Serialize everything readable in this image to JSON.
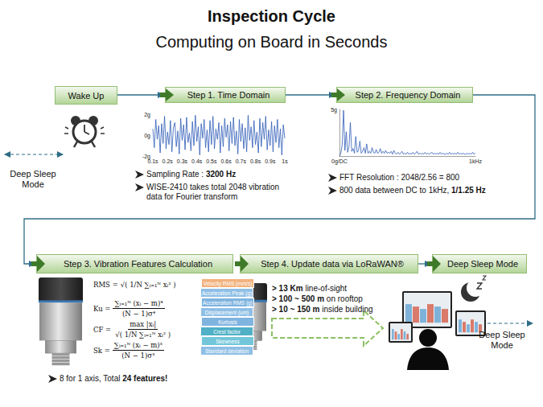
{
  "title": "Inspection Cycle",
  "subtitle": "Computing on Board in Seconds",
  "wake_up": "Wake Up",
  "steps": [
    "Step 1. Time Domain",
    "Step 2. Frequency Domain",
    "Step 3. Vibration Features Calculation",
    "Step 4. Update data via LoRaWAN®",
    "Deep Sleep Mode"
  ],
  "deep_sleep_left": [
    "Deep Sleep",
    "Mode"
  ],
  "deep_sleep_right": [
    "Deep Sleep",
    "Mode"
  ],
  "step1_notes": [
    [
      {
        "text": "Sampling Rate : "
      },
      {
        "bold": "3200 Hz"
      }
    ],
    [
      {
        "text": "WISE-2410 takes total 2048 vibration data for Fourier transform"
      }
    ]
  ],
  "step2_notes": [
    [
      {
        "text": "FFT Resolution : 2048/2.56 = 800"
      }
    ],
    [
      {
        "text": "800 data between DC to 1kHz, "
      },
      {
        "bold": "1/1.25 Hz"
      }
    ]
  ],
  "formulas": [
    {
      "lhs": "RMS =",
      "expression": "√( 1/N ∑ᵢ₌₁ᴺ xᵢ² )"
    },
    {
      "lhs": "Ku =",
      "numerator": "∑ᵢ₌₁ᴺ (xᵢ − m)⁴",
      "denominator": "(N − 1)σ⁴"
    },
    {
      "lhs": "CF =",
      "numerator": "max |xᵢ|",
      "denominator": "√( 1/N ∑ᵢ₌₁ᴺ xᵢ² )"
    },
    {
      "lhs": "Sk =",
      "numerator": "∑ᵢ₌₁ᴺ (xᵢ − m)³",
      "denominator": "(N − 1)σ³"
    }
  ],
  "features": [
    "Velocity RMS (mm/s)",
    "Acceleration Peak (g)",
    "Acceleration RMS (g)",
    "Displacement (um)",
    "Kurtosis",
    "Crest factor",
    "Skewness",
    "Standard deviation"
  ],
  "step3_note": [
    {
      "text": "8 for 1 axis, Total "
    },
    {
      "bold": "24 features!"
    }
  ],
  "lorawan_ranges": [
    [
      {
        "bold": "> 13 Km"
      },
      {
        "text": " line-of-sight"
      }
    ],
    [
      {
        "bold": "> 100 ~ 500 m"
      },
      {
        "text": " on rooftop"
      }
    ],
    [
      {
        "bold": "> 10 ~ 150 m"
      },
      {
        "text": " inside building"
      }
    ]
  ],
  "chart_data": [
    {
      "type": "line",
      "color": "#2e5cb8",
      "grid": false,
      "x": [
        0.1,
        0.11,
        0.12,
        0.13,
        0.14,
        0.15,
        0.16,
        0.17,
        0.18,
        0.19,
        0.2,
        0.21,
        0.22,
        0.23,
        0.24,
        0.25,
        0.26,
        0.27,
        0.28,
        0.29,
        0.3,
        0.31,
        0.32,
        0.33,
        0.34,
        0.35,
        0.36,
        0.37,
        0.38,
        0.39,
        0.4,
        0.41,
        0.42,
        0.43,
        0.44,
        0.45,
        0.46,
        0.47,
        0.48,
        0.49,
        0.5,
        0.51,
        0.52,
        0.53,
        0.54,
        0.55,
        0.56,
        0.57,
        0.58,
        0.59,
        0.6,
        0.61,
        0.62,
        0.63,
        0.64,
        0.65,
        0.66,
        0.67,
        0.68,
        0.69,
        0.7,
        0.71,
        0.72,
        0.73,
        0.74,
        0.75,
        0.76,
        0.77,
        0.78,
        0.79,
        0.8,
        0.81,
        0.82,
        0.83,
        0.84,
        0.85,
        0.86,
        0.87,
        0.88,
        0.89,
        0.9,
        0.91,
        0.92,
        0.93,
        0.94,
        0.95,
        0.96,
        0.97,
        0.98,
        0.99,
        1
      ],
      "values": [
        0.6,
        -1.2,
        1.5,
        -0.4,
        0.9,
        -1.7,
        1.1,
        -0.8,
        1.8,
        -1.3,
        0.3,
        -0.9,
        1.4,
        -1.6,
        0.7,
        1.2,
        -1.1,
        0.4,
        -1.8,
        1.6,
        -0.5,
        1.0,
        -1.4,
        1.7,
        -0.7,
        0.2,
        -1.5,
        1.3,
        -1.0,
        1.9,
        -0.6,
        0.8,
        -1.9,
        1.1,
        -0.3,
        1.5,
        -1.2,
        0.5,
        -1.6,
        1.4,
        -0.9,
        1.8,
        -1.3,
        0.6,
        -0.4,
        1.2,
        -1.7,
        0.9,
        -1.1,
        1.6,
        -0.2,
        1.0,
        -1.5,
        1.3,
        -0.8,
        1.7,
        -1.0,
        0.4,
        -1.8,
        1.5,
        -0.6,
        1.1,
        -1.3,
        0.7,
        -1.6,
        1.9,
        -0.5,
        0.8,
        -1.2,
        1.4,
        -0.9,
        0.3,
        -1.7,
        1.6,
        -1.1,
        1.2,
        -0.4,
        1.8,
        -1.4,
        0.5,
        -1.0,
        1.3,
        -1.6,
        0.9,
        -0.7,
        1.5,
        -1.2,
        0.6,
        -1.9,
        1.0,
        -0.3
      ],
      "xlim": [
        0.1,
        1
      ],
      "xticks": [
        {
          "value": 0.1,
          "label": "0.1s"
        },
        {
          "value": 0.2,
          "label": "0.2s"
        },
        {
          "value": 0.3,
          "label": "0.3s"
        },
        {
          "value": 0.4,
          "label": "0.4s"
        },
        {
          "value": 0.5,
          "label": "0.5s"
        },
        {
          "value": 0.6,
          "label": "0.6s"
        },
        {
          "value": 0.7,
          "label": "0.7s"
        },
        {
          "value": 0.8,
          "label": "0.8s"
        },
        {
          "value": 0.9,
          "label": "0.9s"
        },
        {
          "value": 1,
          "label": "1s"
        }
      ],
      "ylim": [
        -2,
        2
      ],
      "yticks": [
        {
          "value": -2,
          "label": "-2g"
        },
        {
          "value": 0,
          "label": "0g"
        },
        {
          "value": 2,
          "label": "2g"
        }
      ]
    },
    {
      "type": "line",
      "color": "#2e5cb8",
      "grid": false,
      "x": [
        0,
        10,
        20,
        30,
        40,
        50,
        60,
        70,
        80,
        90,
        100,
        110,
        120,
        130,
        140,
        150,
        160,
        170,
        180,
        190,
        200,
        210,
        220,
        230,
        240,
        250,
        260,
        270,
        280,
        290,
        300,
        310,
        320,
        330,
        340,
        350,
        360,
        370,
        380,
        390,
        400,
        410,
        420,
        430,
        440,
        450,
        460,
        470,
        480,
        490,
        500,
        510,
        520,
        530,
        540,
        550,
        560,
        570,
        580,
        590,
        600,
        610,
        620,
        630,
        640,
        650,
        660,
        670,
        680,
        690,
        700,
        710,
        720,
        730,
        740,
        750,
        760,
        770,
        780,
        790,
        800,
        810,
        820,
        830,
        840,
        850,
        860,
        870,
        880,
        890,
        900,
        910,
        920,
        930,
        940,
        950,
        960,
        970,
        980,
        990,
        1000
      ],
      "values": [
        0,
        0.3,
        1.2,
        4.9,
        0.6,
        2.6,
        0.4,
        1.0,
        3.6,
        0.5,
        0.8,
        0.3,
        2.1,
        0.4,
        0.6,
        1.6,
        0.3,
        0.5,
        0.9,
        0.3,
        1.3,
        0.3,
        0.5,
        0.3,
        0.9,
        0.4,
        0.3,
        0.7,
        0.3,
        0.4,
        0.8,
        0.3,
        0.5,
        0.3,
        0.6,
        0.3,
        0.4,
        0.3,
        0.5,
        0.2,
        0.6,
        0.3,
        0.2,
        0.4,
        0.2,
        0.3,
        0.5,
        0.2,
        0.3,
        0.2,
        0.4,
        0.2,
        0.3,
        0.2,
        0.4,
        0.2,
        0.3,
        0.5,
        0.2,
        0.3,
        0.2,
        0.3,
        0.2,
        0.4,
        0.2,
        0.3,
        0.2,
        0.3,
        0.4,
        0.2,
        0.3,
        0.2,
        0.3,
        0.2,
        0.4,
        0.2,
        0.3,
        0.2,
        0.2,
        0.3,
        0.2,
        0.4,
        0.2,
        0.3,
        0.2,
        0.3,
        0.2,
        0.4,
        0.2,
        0.3,
        0.2,
        0.3,
        0.2,
        0.2,
        0.3,
        0.2,
        0.3,
        0.2,
        0.4,
        0.2,
        0.3
      ],
      "xlim": [
        0,
        1000
      ],
      "xticks": [
        {
          "value": 0,
          "label": "0g/DC"
        },
        {
          "value": 1000,
          "label": "1kHz"
        }
      ],
      "ylim": [
        0,
        5
      ],
      "yticks": [
        {
          "value": 5,
          "label": "5g"
        }
      ]
    }
  ]
}
